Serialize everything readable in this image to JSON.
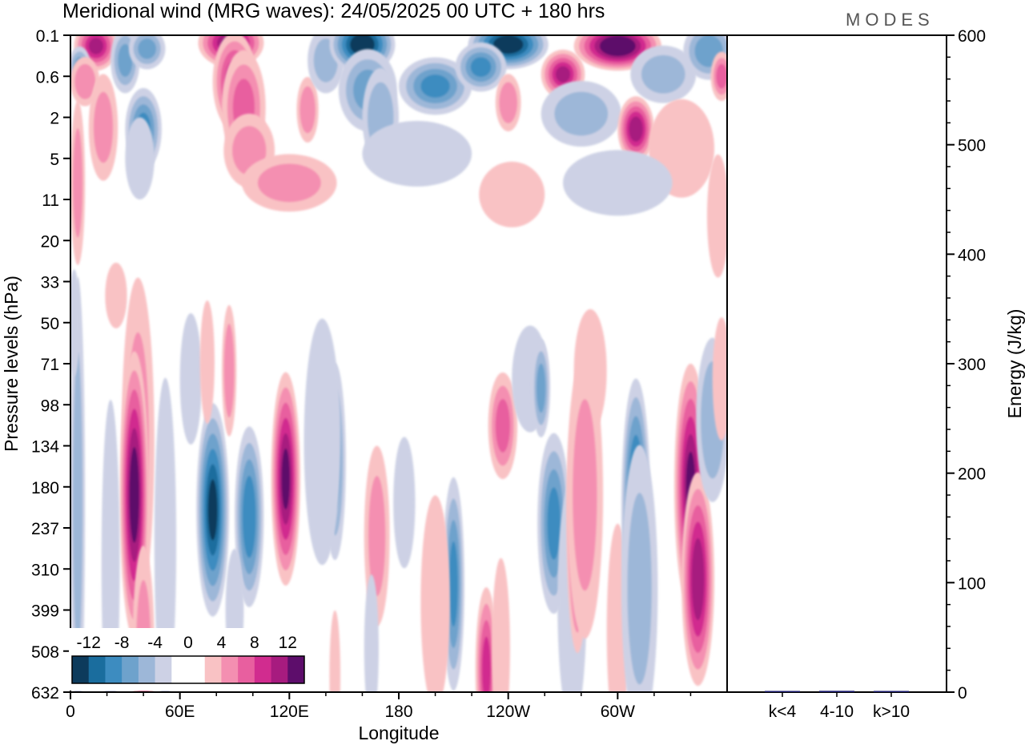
{
  "chart_data": {
    "type": "heatmap",
    "title": "Meridional wind (MRG waves):  24/05/2025  00 UTC  + 180 hrs",
    "logo": "MODES",
    "xlabel": "Longitude",
    "ylabel": "Pressure levels (hPa)",
    "y2label": "Energy (J/kg)",
    "x_ticks": [
      "0",
      "60E",
      "120E",
      "180",
      "120W",
      "60W"
    ],
    "x_range_deg": [
      0,
      360
    ],
    "y_ticks": [
      "0.1",
      "0.6",
      "2",
      "5",
      "11",
      "20",
      "33",
      "50",
      "71",
      "98",
      "134",
      "180",
      "237",
      "310",
      "399",
      "508",
      "632"
    ],
    "y2_ticks": [
      "0",
      "100",
      "200",
      "300",
      "400",
      "500",
      "600"
    ],
    "y2_range": [
      0,
      600
    ],
    "energy_bars": {
      "categories": [
        "k<4",
        "4-10",
        "k>10"
      ],
      "values": [
        0.3,
        1.2,
        0.3
      ]
    },
    "colorbar": {
      "labels": [
        "-12",
        "-8",
        "-4",
        "0",
        "4",
        "8",
        "12"
      ],
      "levels": [
        -14,
        -12,
        -10,
        -8,
        -6,
        -4,
        -2,
        0,
        2,
        4,
        6,
        8,
        10,
        12,
        14
      ],
      "colors": [
        "#0d3b5c",
        "#1a6d9e",
        "#3d8cc0",
        "#6ea2cc",
        "#9db7d8",
        "#cdd1e5",
        "#ffffff",
        "#ffffff",
        "#f9c2c4",
        "#f48fb1",
        "#e85f9f",
        "#d12c8f",
        "#a71b7f",
        "#5d0d6b"
      ]
    },
    "blobs": [
      {
        "lon": 14,
        "lev": 0.16,
        "val": 10,
        "w": 12,
        "h": 0.6
      },
      {
        "lon": 5,
        "lev": 0.4,
        "val": -6,
        "w": 6,
        "h": 0.5
      },
      {
        "lon": 8,
        "lev": 0.7,
        "val": 5,
        "w": 8,
        "h": 0.6
      },
      {
        "lon": 30,
        "lev": 0.3,
        "val": -6,
        "w": 8,
        "h": 0.8
      },
      {
        "lon": 42,
        "lev": 0.18,
        "val": -6,
        "w": 10,
        "h": 0.5
      },
      {
        "lon": 40,
        "lev": 2.6,
        "val": -8,
        "w": 10,
        "h": 1.0
      },
      {
        "lon": 38,
        "lev": 5,
        "val": -3,
        "w": 8,
        "h": 1.0
      },
      {
        "lon": 18,
        "lev": 2.5,
        "val": 4,
        "w": 8,
        "h": 1.3
      },
      {
        "lon": 4,
        "lev": 8,
        "val": 4,
        "w": 4,
        "h": 2.0
      },
      {
        "lon": 88,
        "lev": 0.14,
        "val": 12,
        "w": 18,
        "h": 0.6
      },
      {
        "lon": 90,
        "lev": 0.7,
        "val": 9,
        "w": 12,
        "h": 1.2
      },
      {
        "lon": 95,
        "lev": 1.5,
        "val": 6,
        "w": 12,
        "h": 1.4
      },
      {
        "lon": 98,
        "lev": 4.2,
        "val": 4,
        "w": 14,
        "h": 0.9
      },
      {
        "lon": 120,
        "lev": 8,
        "val": 4,
        "w": 26,
        "h": 0.7
      },
      {
        "lon": 130,
        "lev": 1.6,
        "val": 5,
        "w": 6,
        "h": 0.8
      },
      {
        "lon": 140,
        "lev": 0.3,
        "val": -4,
        "w": 10,
        "h": 0.8
      },
      {
        "lon": 160,
        "lev": 0.15,
        "val": -14,
        "w": 18,
        "h": 0.7
      },
      {
        "lon": 163,
        "lev": 0.9,
        "val": -6,
        "w": 16,
        "h": 1.0
      },
      {
        "lon": 170,
        "lev": 2.0,
        "val": -5,
        "w": 10,
        "h": 1.2
      },
      {
        "lon": 190,
        "lev": 4.5,
        "val": -3,
        "w": 30,
        "h": 0.8
      },
      {
        "lon": 200,
        "lev": 0.8,
        "val": -8,
        "w": 20,
        "h": 0.7
      },
      {
        "lon": 240,
        "lev": 0.15,
        "val": -14,
        "w": 22,
        "h": 0.6
      },
      {
        "lon": 225,
        "lev": 0.4,
        "val": -8,
        "w": 14,
        "h": 0.6
      },
      {
        "lon": 300,
        "lev": 0.16,
        "val": 15,
        "w": 24,
        "h": 0.6
      },
      {
        "lon": 270,
        "lev": 0.55,
        "val": 10,
        "w": 12,
        "h": 0.6
      },
      {
        "lon": 325,
        "lev": 0.55,
        "val": -4,
        "w": 18,
        "h": 0.7
      },
      {
        "lon": 350,
        "lev": 0.2,
        "val": -7,
        "w": 14,
        "h": 0.7
      },
      {
        "lon": 357,
        "lev": 0.6,
        "val": 6,
        "w": 6,
        "h": 0.6
      },
      {
        "lon": 240,
        "lev": 1.3,
        "val": 5,
        "w": 7,
        "h": 0.7
      },
      {
        "lon": 280,
        "lev": 1.8,
        "val": -4,
        "w": 22,
        "h": 0.8
      },
      {
        "lon": 310,
        "lev": 2.6,
        "val": 11,
        "w": 10,
        "h": 0.8
      },
      {
        "lon": 335,
        "lev": 4,
        "val": 3,
        "w": 18,
        "h": 1.2
      },
      {
        "lon": 300,
        "lev": 8,
        "val": -3,
        "w": 30,
        "h": 0.8
      },
      {
        "lon": 355,
        "lev": 14,
        "val": 3,
        "w": 6,
        "h": 1.5
      },
      {
        "lon": 242,
        "lev": 10,
        "val": 3,
        "w": 18,
        "h": 0.8
      },
      {
        "lon": 25,
        "lev": 38,
        "val": 2,
        "w": 6,
        "h": 0.8
      },
      {
        "lon": 37,
        "lev": 130,
        "val": 4,
        "w": 9,
        "h": 4.0
      },
      {
        "lon": 35,
        "lev": 190,
        "val": 13,
        "w": 8,
        "h": 3.5
      },
      {
        "lon": 40,
        "lev": 500,
        "val": 4,
        "w": 6,
        "h": 2.5
      },
      {
        "lon": 4,
        "lev": 200,
        "val": -4,
        "w": 4,
        "h": 5.5
      },
      {
        "lon": 22,
        "lev": 300,
        "val": -2,
        "w": 5,
        "h": 4.0
      },
      {
        "lon": 52,
        "lev": 260,
        "val": -2,
        "w": 6,
        "h": 4.0
      },
      {
        "lon": 78,
        "lev": 210,
        "val": -12,
        "w": 9,
        "h": 2.6
      },
      {
        "lon": 98,
        "lev": 220,
        "val": -9,
        "w": 8,
        "h": 2.2
      },
      {
        "lon": 90,
        "lev": 400,
        "val": -3,
        "w": 5,
        "h": 1.5
      },
      {
        "lon": 118,
        "lev": 170,
        "val": 12,
        "w": 8,
        "h": 2.6
      },
      {
        "lon": 87,
        "lev": 75,
        "val": 5,
        "w": 4,
        "h": 1.6
      },
      {
        "lon": 66,
        "lev": 80,
        "val": -3,
        "w": 6,
        "h": 1.6
      },
      {
        "lon": 75,
        "lev": 70,
        "val": 2,
        "w": 4,
        "h": 1.5
      },
      {
        "lon": 145,
        "lev": 150,
        "val": -6,
        "w": 6,
        "h": 2.4
      },
      {
        "lon": 138,
        "lev": 130,
        "val": -3,
        "w": 10,
        "h": 3.0
      },
      {
        "lon": 168,
        "lev": 250,
        "val": 4,
        "w": 7,
        "h": 2.2
      },
      {
        "lon": 183,
        "lev": 200,
        "val": -3,
        "w": 6,
        "h": 1.6
      },
      {
        "lon": 165,
        "lev": 500,
        "val": -3,
        "w": 4,
        "h": 1.8
      },
      {
        "lon": 145,
        "lev": 580,
        "val": 2,
        "w": 3,
        "h": 1.6
      },
      {
        "lon": 210,
        "lev": 340,
        "val": -8,
        "w": 6,
        "h": 2.6
      },
      {
        "lon": 200,
        "lev": 380,
        "val": 2,
        "w": 8,
        "h": 2.6
      },
      {
        "lon": 228,
        "lev": 560,
        "val": 8,
        "w": 6,
        "h": 2.0
      },
      {
        "lon": 236,
        "lev": 500,
        "val": 3,
        "w": 5,
        "h": 2.2
      },
      {
        "lon": 237,
        "lev": 115,
        "val": 6,
        "w": 8,
        "h": 1.3
      },
      {
        "lon": 252,
        "lev": 80,
        "val": -3,
        "w": 10,
        "h": 1.3
      },
      {
        "lon": 258,
        "lev": 86,
        "val": -6,
        "w": 5,
        "h": 1.2
      },
      {
        "lon": 285,
        "lev": 75,
        "val": 2,
        "w": 9,
        "h": 1.5
      },
      {
        "lon": 265,
        "lev": 230,
        "val": -8,
        "w": 9,
        "h": 2.2
      },
      {
        "lon": 275,
        "lev": 380,
        "val": -3,
        "w": 8,
        "h": 3.0
      },
      {
        "lon": 278,
        "lev": 240,
        "val": 10,
        "w": 6,
        "h": 3.0
      },
      {
        "lon": 282,
        "lev": 190,
        "val": 4,
        "w": 10,
        "h": 3.5
      },
      {
        "lon": 300,
        "lev": 450,
        "val": 3,
        "w": 6,
        "h": 2.6
      },
      {
        "lon": 310,
        "lev": 210,
        "val": -12,
        "w": 8,
        "h": 3.2
      },
      {
        "lon": 312,
        "lev": 350,
        "val": -4,
        "w": 10,
        "h": 3.5
      },
      {
        "lon": 340,
        "lev": 180,
        "val": 12,
        "w": 9,
        "h": 3.0
      },
      {
        "lon": 344,
        "lev": 330,
        "val": 11,
        "w": 9,
        "h": 2.6
      },
      {
        "lon": 352,
        "lev": 110,
        "val": -5,
        "w": 9,
        "h": 2.0
      },
      {
        "lon": 357,
        "lev": 80,
        "val": 3,
        "w": 5,
        "h": 1.5
      },
      {
        "lon": 2,
        "lev": 50,
        "val": -2,
        "w": 3,
        "h": 1.3
      }
    ]
  }
}
